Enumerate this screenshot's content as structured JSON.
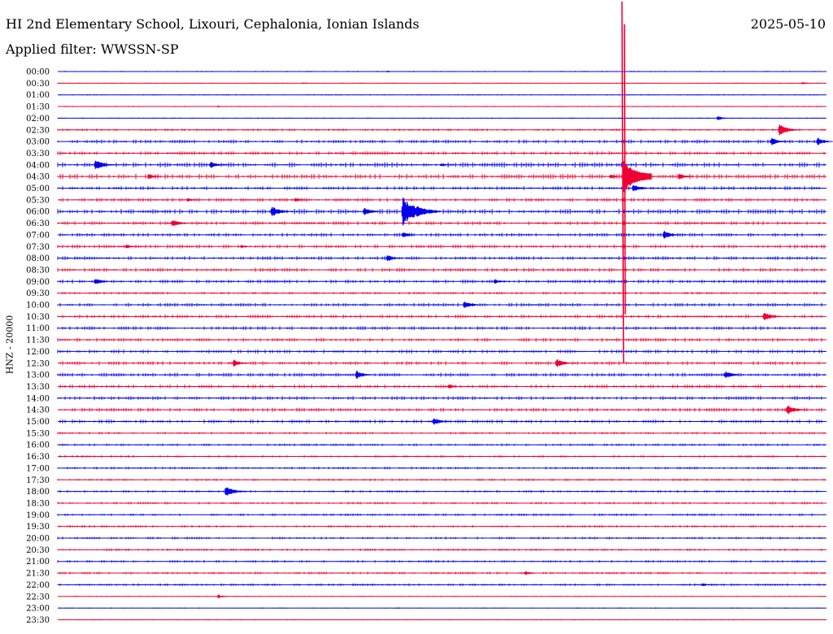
{
  "header": {
    "title": "HI 2nd Elementary School, Lixouri, Cephalonia, Ionian Islands",
    "date": "2025-05-10",
    "filter": "Applied filter: WWSSN-SP"
  },
  "colors": {
    "trace_a": "#0000ee",
    "trace_b": "#ee0033",
    "background": "#ffffff",
    "text": "#000000"
  },
  "chart_data": {
    "type": "helicorder",
    "ylabel": "HNZ - 20000",
    "row_labels": [
      "00:00",
      "00:30",
      "01:00",
      "01:30",
      "02:00",
      "02:30",
      "03:00",
      "03:30",
      "04:00",
      "04:30",
      "05:00",
      "05:30",
      "06:00",
      "06:30",
      "07:00",
      "07:30",
      "08:00",
      "08:30",
      "09:00",
      "09:30",
      "10:00",
      "10:30",
      "11:00",
      "11:30",
      "12:00",
      "12:30",
      "13:00",
      "13:30",
      "14:00",
      "14:30",
      "15:00",
      "15:30",
      "16:00",
      "16:30",
      "17:00",
      "17:30",
      "18:00",
      "18:30",
      "19:00",
      "19:30",
      "20:00",
      "20:30",
      "21:00",
      "21:30",
      "22:00",
      "22:30",
      "23:00",
      "23:30"
    ],
    "colors": [
      "#0000ee",
      "#ee0033"
    ],
    "noise_level": [
      1,
      1,
      1,
      1,
      1,
      2,
      3,
      3,
      4,
      4,
      3,
      3,
      4,
      3,
      3,
      3,
      3,
      3,
      3,
      2,
      3,
      3,
      3,
      3,
      3,
      3,
      3,
      3,
      3,
      3,
      3,
      2,
      2,
      2,
      2,
      2,
      2,
      2,
      2,
      2,
      2,
      2,
      2,
      2,
      2,
      1,
      1,
      1
    ],
    "events": [
      {
        "row": 0,
        "t": 0.43,
        "amp": 0.2
      },
      {
        "row": 1,
        "t": 0.32,
        "amp": 0.2
      },
      {
        "row": 1,
        "t": 0.97,
        "amp": 0.3
      },
      {
        "row": 3,
        "t": 0.21,
        "amp": 0.2
      },
      {
        "row": 4,
        "t": 0.86,
        "amp": 0.5
      },
      {
        "row": 5,
        "t": 0.94,
        "amp": 1.1
      },
      {
        "row": 6,
        "t": 0.93,
        "amp": 0.8
      },
      {
        "row": 6,
        "t": 0.99,
        "amp": 0.8
      },
      {
        "row": 8,
        "t": 0.05,
        "amp": 1.0
      },
      {
        "row": 8,
        "t": 0.2,
        "amp": 0.7
      },
      {
        "row": 8,
        "t": 0.5,
        "amp": 0.4
      },
      {
        "row": 9,
        "t": 0.12,
        "amp": 0.6
      },
      {
        "row": 9,
        "t": 0.72,
        "amp": 0.5
      },
      {
        "row": 9,
        "t": 0.81,
        "amp": 0.7
      },
      {
        "row": 10,
        "t": 0.75,
        "amp": 0.8
      },
      {
        "row": 11,
        "t": 0.17,
        "amp": 0.4
      },
      {
        "row": 11,
        "t": 0.31,
        "amp": 0.5
      },
      {
        "row": 12,
        "t": 0.28,
        "amp": 1.0
      },
      {
        "row": 12,
        "t": 0.4,
        "amp": 0.8
      },
      {
        "row": 12,
        "t": 0.45,
        "amp": 2.6
      },
      {
        "row": 13,
        "t": 0.15,
        "amp": 0.8
      },
      {
        "row": 14,
        "t": 0.45,
        "amp": 0.6
      },
      {
        "row": 14,
        "t": 0.79,
        "amp": 0.8
      },
      {
        "row": 15,
        "t": 0.09,
        "amp": 0.5
      },
      {
        "row": 15,
        "t": 0.24,
        "amp": 0.4
      },
      {
        "row": 16,
        "t": 0.43,
        "amp": 0.7
      },
      {
        "row": 18,
        "t": 0.05,
        "amp": 0.7
      },
      {
        "row": 18,
        "t": 0.57,
        "amp": 0.5
      },
      {
        "row": 20,
        "t": 0.53,
        "amp": 0.8
      },
      {
        "row": 21,
        "t": 0.92,
        "amp": 0.9
      },
      {
        "row": 25,
        "t": 0.23,
        "amp": 0.7
      },
      {
        "row": 25,
        "t": 0.65,
        "amp": 0.9
      },
      {
        "row": 26,
        "t": 0.39,
        "amp": 0.8
      },
      {
        "row": 26,
        "t": 0.87,
        "amp": 0.8
      },
      {
        "row": 27,
        "t": 0.51,
        "amp": 0.5
      },
      {
        "row": 29,
        "t": 0.95,
        "amp": 1.0
      },
      {
        "row": 30,
        "t": 0.49,
        "amp": 0.8
      },
      {
        "row": 36,
        "t": 0.22,
        "amp": 1.1
      },
      {
        "row": 43,
        "t": 0.61,
        "amp": 0.4
      },
      {
        "row": 44,
        "t": 0.84,
        "amp": 0.4
      },
      {
        "row": 45,
        "t": 0.21,
        "amp": 0.4
      }
    ],
    "mainshock": {
      "row": 9,
      "t": 0.735,
      "up_to_row": -6,
      "down_to_row": 25
    }
  }
}
